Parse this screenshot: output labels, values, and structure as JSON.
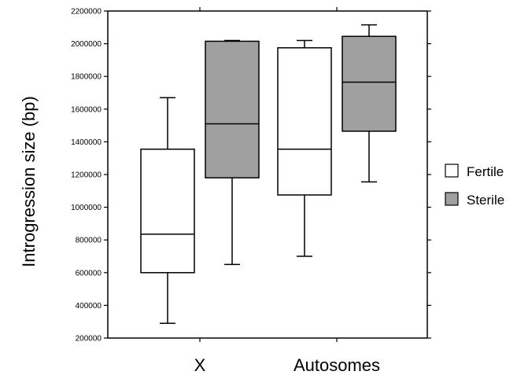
{
  "chart_data": {
    "type": "boxplot",
    "title": "",
    "xlabel": "",
    "ylabel": "Introgression size (bp)",
    "ylim": [
      200000,
      2200000
    ],
    "yticks": [
      200000,
      400000,
      600000,
      800000,
      1000000,
      1200000,
      1400000,
      1600000,
      1800000,
      2000000,
      2200000
    ],
    "ytick_labels": [
      "200000",
      "400000",
      "600000",
      "800000",
      "1000000",
      "1200000",
      "1400000",
      "1600000",
      "1800000",
      "2000000",
      "2200000"
    ],
    "categories": [
      "X",
      "Autosomes"
    ],
    "legend_position": "right",
    "grid": false,
    "series": [
      {
        "name": "Fertile",
        "color": "#ffffff",
        "boxes": [
          {
            "min": 290000,
            "q1": 600000,
            "median": 835000,
            "q3": 1355000,
            "max": 1670000
          },
          {
            "min": 700000,
            "q1": 1075000,
            "median": 1355000,
            "q3": 1975000,
            "max": 2020000
          }
        ]
      },
      {
        "name": "Sterile",
        "color": "#a0a0a0",
        "boxes": [
          {
            "min": 650000,
            "q1": 1180000,
            "median": 1510000,
            "q3": 2015000,
            "max": 2020000
          },
          {
            "min": 1155000,
            "q1": 1465000,
            "median": 1765000,
            "q3": 2045000,
            "max": 2115000
          }
        ]
      }
    ]
  }
}
